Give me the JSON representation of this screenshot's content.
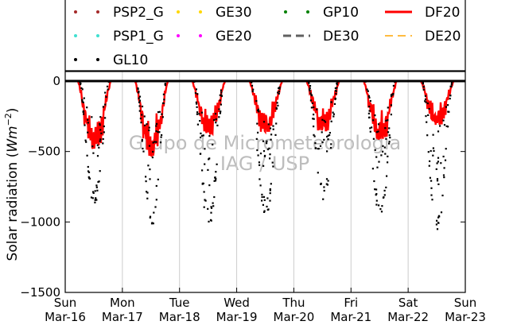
{
  "chart_data": {
    "type": "scatter",
    "title": "",
    "xlabel": "",
    "ylabel": "Solar radiation (Wm^-2)",
    "ylabel_parts": {
      "text": "Solar radiation (",
      "unit": "Wm",
      "exp": "−2",
      "close": ")"
    },
    "ylim": [
      -1500,
      0
    ],
    "yticks": [
      0,
      -500,
      -1000,
      -1500
    ],
    "ytick_labels": [
      "0",
      "−500",
      "−1000",
      "−1500"
    ],
    "xlim_days": [
      0,
      7
    ],
    "xtick_labels": [
      [
        "Sun",
        "Mar-16"
      ],
      [
        "Mon",
        "Mar-17"
      ],
      [
        "Tue",
        "Mar-18"
      ],
      [
        "Wed",
        "Mar-19"
      ],
      [
        "Thu",
        "Mar-20"
      ],
      [
        "Fri",
        "Mar-21"
      ],
      [
        "Sat",
        "Mar-22"
      ],
      [
        "Sun",
        "Mar-23"
      ]
    ],
    "grid": "vertical",
    "legend_position": "top",
    "watermark": [
      "Grupo de Micrometeorologia",
      "IAG / USP"
    ],
    "series": [
      {
        "name": "PSP2_G",
        "style": "dots",
        "color": "#a52a2a"
      },
      {
        "name": "GE30",
        "style": "dots",
        "color": "#ffd700"
      },
      {
        "name": "GP10",
        "style": "dots",
        "color": "#008000"
      },
      {
        "name": "DF20",
        "style": "line",
        "color": "#ff0000"
      },
      {
        "name": "PSP1_G",
        "style": "dots",
        "color": "#40e0d0"
      },
      {
        "name": "GE20",
        "style": "dots",
        "color": "#ff00ff"
      },
      {
        "name": "DE30",
        "style": "dash",
        "color": "#606060"
      },
      {
        "name": "DE20",
        "style": "dash",
        "color": "#ffa500"
      },
      {
        "name": "GL10",
        "style": "dots",
        "color": "#000000"
      }
    ],
    "daily_peaks": {
      "dates": [
        "Mar-16",
        "Mar-17",
        "Mar-18",
        "Mar-19",
        "Mar-20",
        "Mar-21",
        "Mar-22"
      ],
      "GL10_min": [
        -890,
        -1040,
        -1070,
        -985,
        -880,
        -1010,
        -1090
      ],
      "DF20_min": [
        -480,
        -530,
        -380,
        -360,
        -350,
        -410,
        -310
      ]
    }
  }
}
